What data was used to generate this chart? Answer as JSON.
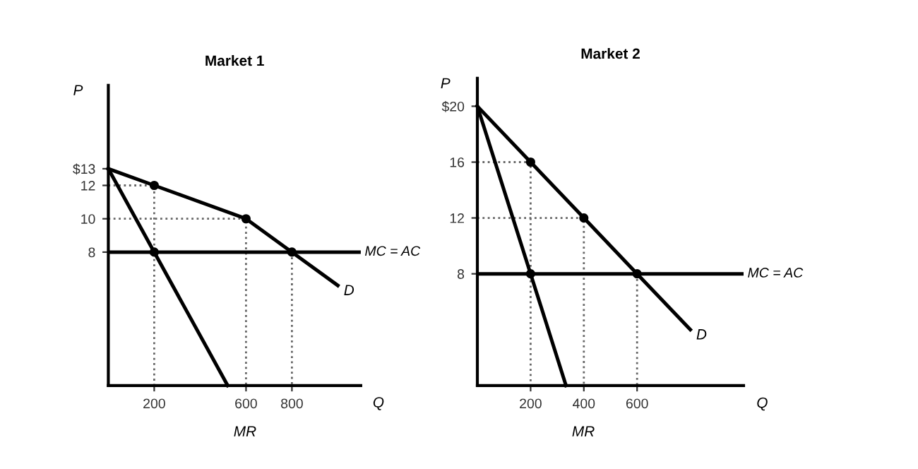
{
  "chart_data": [
    {
      "type": "line",
      "title": "Market 1",
      "xlabel": "Q",
      "ylabel": "P",
      "xlim": [
        0,
        1100
      ],
      "ylim": [
        0,
        18
      ],
      "xticks": [
        200,
        600,
        800
      ],
      "yticks": [
        8,
        10,
        12,
        {
          "value": 13,
          "label": "$13"
        }
      ],
      "series": [
        {
          "color": "#000000",
          "x": [
            0,
            200,
            600,
            800,
            1000
          ],
          "values": [
            13,
            12,
            10,
            8,
            6
          ]
        },
        {
          "color": "#000000",
          "x": [
            0,
            200,
            520
          ],
          "values": [
            13,
            8,
            0
          ]
        },
        {
          "type": "line",
          "color": "#666666",
          "line_style": "dotted",
          "x": [
            0,
            200,
            200
          ],
          "values": [
            12,
            12,
            0
          ]
        },
        {
          "type": "line",
          "color": "#666666",
          "line_style": "dotted",
          "x": [
            0,
            600,
            600
          ],
          "values": [
            10,
            10,
            0
          ]
        },
        {
          "type": "line",
          "color": "#666666",
          "line_style": "dotted",
          "x": [
            800,
            800
          ],
          "values": [
            8,
            0
          ]
        },
        {
          "type": "scatter",
          "color": "#000000",
          "marker": "circle",
          "x": [
            200,
            600,
            800,
            200
          ],
          "values": [
            12,
            10,
            8,
            8
          ]
        }
      ],
      "ref_lines": [
        {
          "axis": "y",
          "value": 8,
          "label": "MC = AC",
          "color": "#000000"
        }
      ],
      "annotations": [
        {
          "text": "D",
          "x": 1000,
          "y": 6
        },
        {
          "text": "MR",
          "x": 520,
          "y": 0
        }
      ]
    },
    {
      "type": "line",
      "title": "Market 2",
      "xlabel": "Q",
      "ylabel": "P",
      "xlim": [
        0,
        1000
      ],
      "ylim": [
        0,
        22
      ],
      "xticks": [
        200,
        400,
        600
      ],
      "yticks": [
        8,
        12,
        16,
        {
          "value": 20,
          "label": "$20"
        }
      ],
      "series": [
        {
          "color": "#000000",
          "x": [
            0,
            200,
            400,
            600,
            800
          ],
          "values": [
            20,
            16,
            12,
            8,
            4
          ]
        },
        {
          "color": "#000000",
          "x": [
            0,
            200,
            333
          ],
          "values": [
            20,
            8,
            0
          ]
        },
        {
          "type": "line",
          "color": "#666666",
          "line_style": "dotted",
          "x": [
            0,
            200,
            200
          ],
          "values": [
            16,
            16,
            0
          ]
        },
        {
          "type": "line",
          "color": "#666666",
          "line_style": "dotted",
          "x": [
            0,
            400,
            400
          ],
          "values": [
            12,
            12,
            0
          ]
        },
        {
          "type": "line",
          "color": "#666666",
          "line_style": "dotted",
          "x": [
            600,
            600
          ],
          "values": [
            8,
            0
          ]
        },
        {
          "type": "scatter",
          "color": "#000000",
          "marker": "circle",
          "x": [
            200,
            400,
            600,
            200
          ],
          "values": [
            16,
            12,
            8,
            8
          ]
        }
      ],
      "ref_lines": [
        {
          "axis": "y",
          "value": 8,
          "label": "MC = AC",
          "color": "#000000"
        }
      ],
      "annotations": [
        {
          "text": "D",
          "x": 800,
          "y": 4
        },
        {
          "text": "MR",
          "x": 333,
          "y": 0
        }
      ]
    }
  ]
}
